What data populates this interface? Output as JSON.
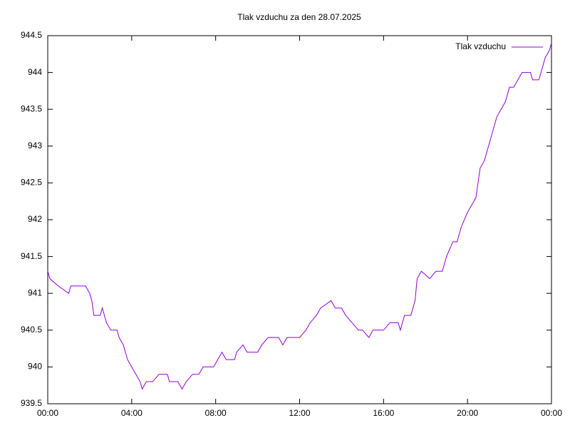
{
  "chart_data": {
    "type": "line",
    "title": "Tlak vzduchu za den 28.07.2025",
    "x": [
      0,
      0.1,
      0.5,
      1.0,
      1.1,
      1.8,
      2.0,
      2.1,
      2.2,
      2.5,
      2.6,
      2.8,
      3.0,
      3.3,
      3.4,
      3.6,
      3.8,
      4.0,
      4.2,
      4.4,
      4.5,
      4.7,
      5.0,
      5.3,
      5.7,
      5.8,
      6.2,
      6.4,
      6.6,
      6.9,
      7.2,
      7.4,
      7.9,
      8.1,
      8.3,
      8.5,
      8.9,
      9.0,
      9.3,
      9.5,
      10.0,
      10.2,
      10.5,
      11.0,
      11.2,
      11.4,
      11.8,
      12.0,
      12.3,
      12.5,
      12.8,
      13.0,
      13.5,
      13.7,
      14.0,
      14.2,
      14.5,
      14.8,
      15.0,
      15.3,
      15.5,
      16.0,
      16.3,
      16.7,
      16.8,
      17.0,
      17.3,
      17.5,
      17.6,
      17.8,
      18.2,
      18.5,
      18.8,
      19.0,
      19.3,
      19.5,
      19.7,
      20.0,
      20.2,
      20.4,
      20.5,
      20.6,
      20.8,
      21.0,
      21.2,
      21.4,
      21.6,
      21.8,
      22.0,
      22.2,
      22.4,
      22.6,
      23.0,
      23.1,
      23.4,
      23.5,
      23.7,
      23.9,
      24.0
    ],
    "series": [
      {
        "name": "Tlak vzduchu",
        "color": "#9400d3",
        "values": [
          941.3,
          941.2,
          941.1,
          941.0,
          941.1,
          941.1,
          941.0,
          940.9,
          940.7,
          940.7,
          940.8,
          940.6,
          940.5,
          940.5,
          940.4,
          940.3,
          940.1,
          940.0,
          939.9,
          939.8,
          939.7,
          939.8,
          939.8,
          939.9,
          939.9,
          939.8,
          939.8,
          939.7,
          939.8,
          939.9,
          939.9,
          940.0,
          940.0,
          940.1,
          940.2,
          940.1,
          940.1,
          940.2,
          940.3,
          940.2,
          940.2,
          940.3,
          940.4,
          940.4,
          940.3,
          940.4,
          940.4,
          940.4,
          940.5,
          940.6,
          940.7,
          940.8,
          940.9,
          940.8,
          940.8,
          940.7,
          940.6,
          940.5,
          940.5,
          940.4,
          940.5,
          940.5,
          940.6,
          940.6,
          940.5,
          940.7,
          940.7,
          940.9,
          941.2,
          941.3,
          941.2,
          941.3,
          941.3,
          941.5,
          941.7,
          941.7,
          941.9,
          942.1,
          942.2,
          942.3,
          942.5,
          942.7,
          942.8,
          943.0,
          943.2,
          943.4,
          943.5,
          943.6,
          943.8,
          943.8,
          943.9,
          944.0,
          944.0,
          943.9,
          943.9,
          944.0,
          944.2,
          944.3,
          944.4
        ]
      }
    ],
    "xlim": [
      0,
      24
    ],
    "xticks": [
      {
        "value": 0,
        "label": "00:00"
      },
      {
        "value": 4,
        "label": "04:00"
      },
      {
        "value": 8,
        "label": "08:00"
      },
      {
        "value": 12,
        "label": "12:00"
      },
      {
        "value": 16,
        "label": "16:00"
      },
      {
        "value": 20,
        "label": "20:00"
      },
      {
        "value": 24,
        "label": "00:00"
      }
    ],
    "ylim": [
      939.5,
      944.5
    ],
    "yticks": [
      939.5,
      940,
      940.5,
      941,
      941.5,
      942,
      942.5,
      943,
      943.5,
      944,
      944.5
    ],
    "legend": "top-right",
    "grid": false
  }
}
